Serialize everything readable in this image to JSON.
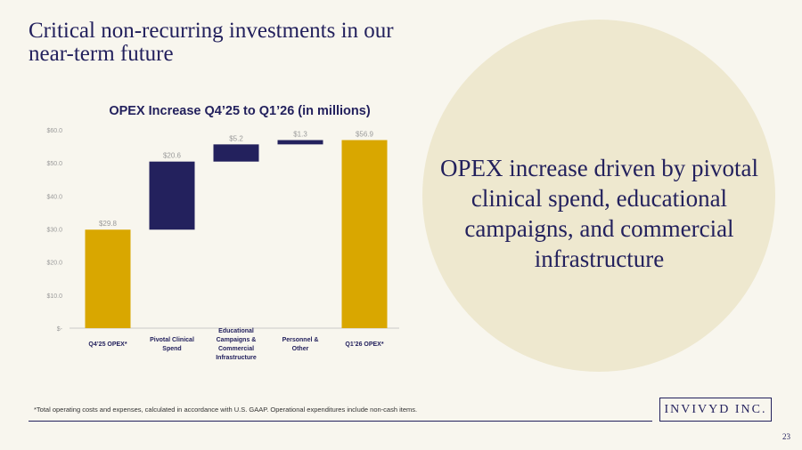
{
  "slide": {
    "title": "Critical non-recurring investments in our near-term future",
    "callout": "OPEX increase driven by pivotal clinical spend, educational campaigns, and commercial infrastructure",
    "footnote": "*Total operating costs and expenses, calculated in accordance with U.S. GAAP. Operational expenditures include non-cash items.",
    "logo": "INVIVYD INC.",
    "page_number": "23"
  },
  "colors": {
    "gold": "#d9a700",
    "navy": "#23215d",
    "label_gray": "#9a9a9a",
    "axis_gray": "#bbbbbb",
    "circle": "#eee8cf"
  },
  "chart_data": {
    "type": "bar",
    "subtype": "waterfall",
    "title": "OPEX Increase Q4’25 to Q1’26 (in millions)",
    "categories": [
      [
        "Q4’25 OPEX*"
      ],
      [
        "Pivotal Clinical",
        "Spend"
      ],
      [
        "Educational",
        "Campaigns &",
        "Commercial",
        "Infrastructure"
      ],
      [
        "Personnel &",
        "Other"
      ],
      [
        "Q1’26 OPEX*"
      ]
    ],
    "bars": [
      {
        "kind": "total",
        "start": 0,
        "end": 29.8,
        "label": "$29.8"
      },
      {
        "kind": "increase",
        "start": 29.8,
        "end": 50.4,
        "label": "$20.6"
      },
      {
        "kind": "increase",
        "start": 50.4,
        "end": 55.6,
        "label": "$5.2"
      },
      {
        "kind": "increase",
        "start": 55.6,
        "end": 56.9,
        "label": "$1.3"
      },
      {
        "kind": "total",
        "start": 0,
        "end": 56.9,
        "label": "$56.9"
      }
    ],
    "ylim": [
      0,
      60
    ],
    "yticks": [
      {
        "value": 0,
        "label": "$-"
      },
      {
        "value": 10,
        "label": "$10.0"
      },
      {
        "value": 20,
        "label": "$20.0"
      },
      {
        "value": 30,
        "label": "$30.0"
      },
      {
        "value": 40,
        "label": "$40.0"
      },
      {
        "value": 50,
        "label": "$50.0"
      },
      {
        "value": 60,
        "label": "$60.0"
      }
    ],
    "grid": false,
    "legend": "none"
  }
}
